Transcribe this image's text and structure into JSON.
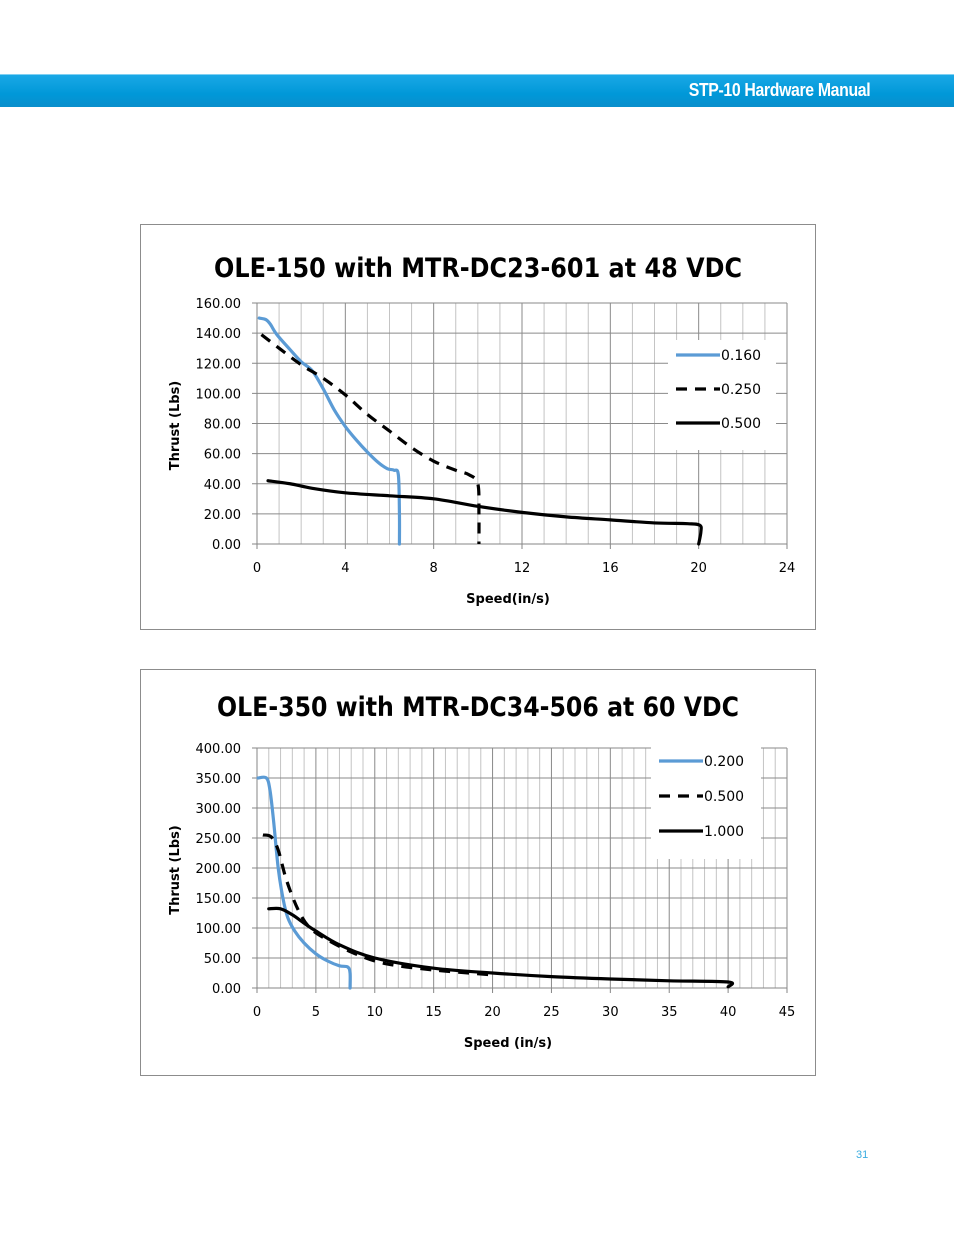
{
  "header": {
    "title": "STP-10 Hardware Manual"
  },
  "page_number": "31",
  "chart_data": [
    {
      "type": "line",
      "title": "OLE-150 with MTR-DC23-601 at 48 VDC",
      "xlabel": "Speed(in/s)",
      "ylabel": "Thrust  (Lbs)",
      "xlim": [
        0,
        24
      ],
      "ylim": [
        0,
        160
      ],
      "xticks": [
        "0",
        "4",
        "8",
        "12",
        "16",
        "20",
        "24"
      ],
      "xtick_values": [
        0,
        4,
        8,
        12,
        16,
        20,
        24
      ],
      "yticks": [
        "0.00",
        "20.00",
        "40.00",
        "60.00",
        "80.00",
        "100.00",
        "120.00",
        "140.00",
        "160.00"
      ],
      "ytick_values": [
        0,
        20,
        40,
        60,
        80,
        100,
        120,
        140,
        160
      ],
      "x_minor_step": 1,
      "grid": true,
      "legend": "right",
      "series": [
        {
          "name": "0.160",
          "color": "#5b9bd5",
          "style": "solid",
          "x": [
            0.1,
            0.4,
            0.6,
            0.9,
            1.5,
            2.0,
            2.5,
            3.0,
            3.5,
            4.0,
            4.5,
            5.0,
            5.5,
            5.9,
            6.2,
            6.4,
            6.45,
            6.45
          ],
          "y": [
            150,
            149,
            146,
            139,
            129,
            121,
            115,
            103,
            89,
            78,
            69,
            61,
            54,
            50,
            49,
            46,
            20,
            0
          ]
        },
        {
          "name": "0.250",
          "color": "#000000",
          "style": "dashed",
          "x": [
            0.2,
            1.0,
            2.0,
            3.0,
            4.0,
            5.0,
            6.0,
            7.0,
            8.0,
            9.0,
            9.6,
            10.0,
            10.05,
            10.05
          ],
          "y": [
            139,
            130,
            119,
            110,
            99,
            86,
            75,
            64,
            55,
            49,
            46,
            40,
            20,
            0
          ]
        },
        {
          "name": "0.500",
          "color": "#000000",
          "style": "solid",
          "x": [
            0.5,
            1.5,
            2.5,
            4.0,
            6.0,
            8.0,
            10.0,
            12.0,
            14.0,
            16.0,
            18.0,
            19.5,
            20.05,
            20.1,
            20.0
          ],
          "y": [
            42,
            40,
            37,
            34,
            32,
            30,
            25,
            21,
            18,
            16,
            14,
            13.5,
            12.5,
            8,
            0
          ]
        }
      ]
    },
    {
      "type": "line",
      "title": "OLE-350 with MTR-DC34-506 at 60 VDC",
      "xlabel": "Speed (in/s)",
      "ylabel": "Thrust  (Lbs)",
      "xlim": [
        0,
        45
      ],
      "ylim": [
        0,
        400
      ],
      "xticks": [
        "0",
        "5",
        "10",
        "15",
        "20",
        "25",
        "30",
        "35",
        "40",
        "45"
      ],
      "xtick_values": [
        0,
        5,
        10,
        15,
        20,
        25,
        30,
        35,
        40,
        45
      ],
      "yticks": [
        "0.00",
        "50.00",
        "100.00",
        "150.00",
        "200.00",
        "250.00",
        "300.00",
        "350.00",
        "400.00"
      ],
      "ytick_values": [
        0,
        50,
        100,
        150,
        200,
        250,
        300,
        350,
        400
      ],
      "x_minor_step": 1,
      "grid": true,
      "legend": "top-right",
      "series": [
        {
          "name": "0.200",
          "color": "#5b9bd5",
          "style": "solid",
          "x": [
            0.1,
            0.8,
            1.1,
            1.4,
            1.8,
            2.2,
            2.6,
            3.2,
            4.0,
            5.0,
            6.0,
            7.0,
            7.7,
            7.9,
            7.9
          ],
          "y": [
            350,
            350,
            330,
            280,
            200,
            150,
            118,
            95,
            75,
            57,
            45,
            37,
            35,
            25,
            0
          ]
        },
        {
          "name": "0.500",
          "color": "#000000",
          "style": "dashed",
          "x": [
            0.5,
            1.2,
            1.8,
            2.5,
            3.5,
            4.5,
            6.0,
            8.0,
            10.0,
            12.0,
            15.0,
            18.0,
            20.0
          ],
          "y": [
            255,
            252,
            230,
            180,
            130,
            100,
            80,
            60,
            45,
            37,
            30,
            25,
            22
          ]
        },
        {
          "name": "1.000",
          "color": "#000000",
          "style": "solid",
          "x": [
            1.0,
            2.0,
            3.0,
            4.0,
            5.0,
            7.0,
            10.0,
            15.0,
            20.0,
            25.0,
            30.0,
            35.0,
            40.0,
            40.0
          ],
          "y": [
            132,
            132,
            122,
            108,
            95,
            72,
            50,
            33,
            25,
            19,
            15,
            12,
            10,
            2
          ]
        }
      ]
    }
  ]
}
